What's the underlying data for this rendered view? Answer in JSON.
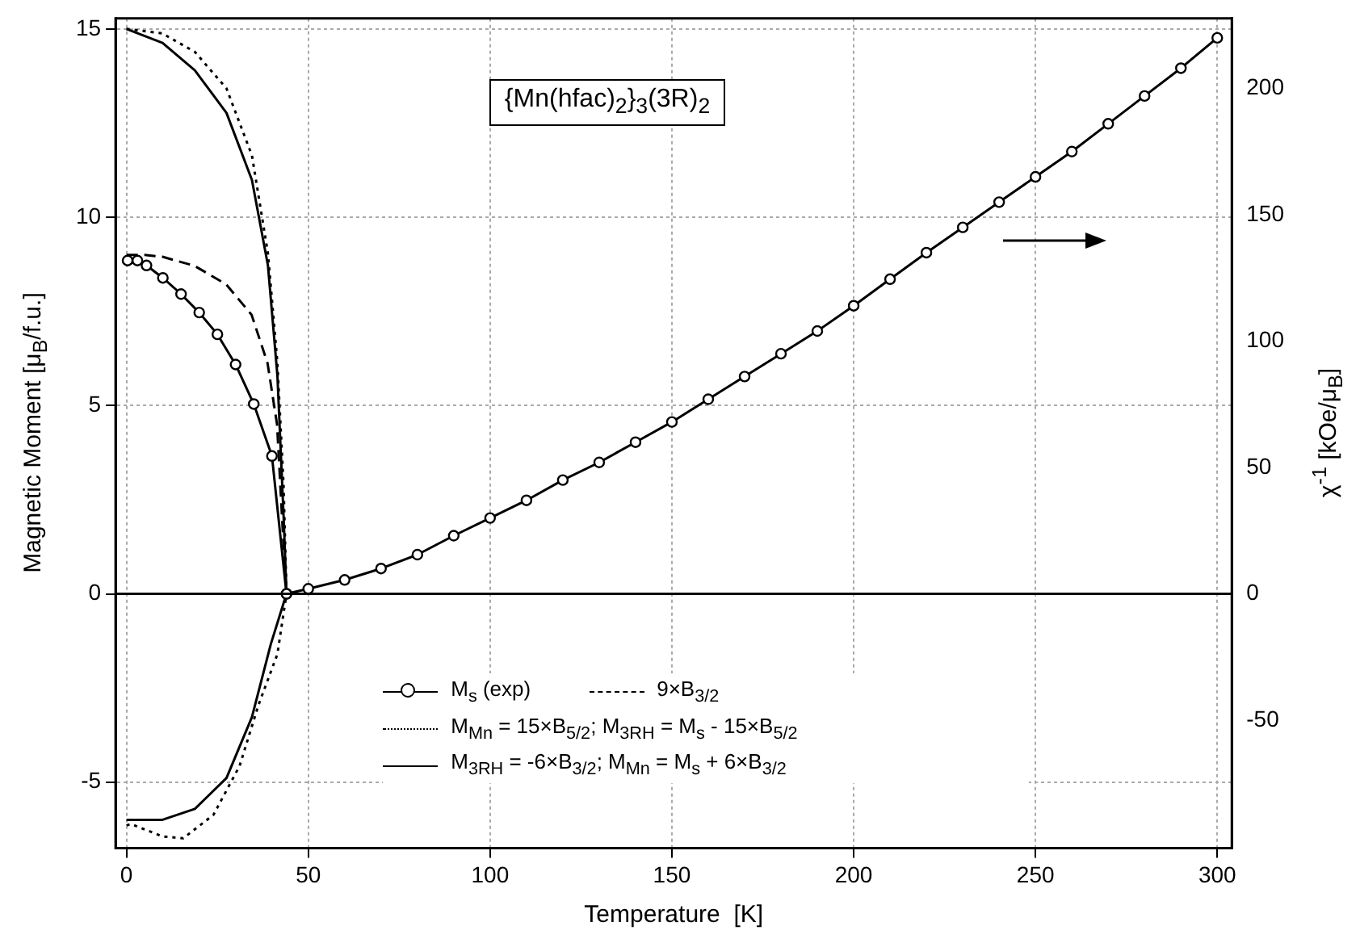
{
  "chart_data": {
    "type": "line",
    "title": "{Mn(hfac)$_{2}$}$_{3}$(3R)$_{2}$",
    "xlabel": "Temperature  [K]",
    "ylabel": "Magnetic Moment [μ$_{B}$/f.u.]",
    "y2label": "χ$^{-1}$  [kOe/μ$_{B}$]",
    "xlim": [
      -3,
      304
    ],
    "xticks": [
      0,
      50,
      100,
      150,
      200,
      250,
      300
    ],
    "ylim": [
      -6.75,
      15.28
    ],
    "yticks": [
      -5,
      0,
      5,
      10,
      15
    ],
    "y2lim": [
      -100.6,
      227.7
    ],
    "y2ticks": [
      -50,
      0,
      50,
      100,
      150,
      200
    ],
    "grid": true,
    "legend": "bottom",
    "ref_lines": [
      {
        "axis": "y",
        "value": 0
      }
    ],
    "series": [
      {
        "name": "M$_{s}$ (exp)",
        "type": "line",
        "marker": "circle",
        "line_style": "solid",
        "color": "#000000",
        "x": [
          0.3,
          3,
          5.5,
          10,
          15,
          20,
          25,
          30,
          35,
          40,
          44
        ],
        "values": [
          8.85,
          8.85,
          8.72,
          8.39,
          7.96,
          7.47,
          6.89,
          6.09,
          5.04,
          3.66,
          0
        ]
      },
      {
        "name": "9×B$_{3/2}$",
        "type": "line",
        "line_style": "dashed",
        "color": "#000000",
        "x": [
          0,
          5,
          9.9,
          18.7,
          27.4,
          34.4,
          38.8,
          41.4,
          43.2,
          44
        ],
        "values": [
          9,
          9,
          8.95,
          8.71,
          8.22,
          7.41,
          6.12,
          4.5,
          1.27,
          0
        ]
      },
      {
        "name": "M$_{Mn}$ = 15×B$_{5/2}$;  M$_{3R}$$_{H}$ = M$_{s}$ - 15×B$_{5/2}$",
        "type": "line",
        "line_style": "dotted",
        "color": "#000000",
        "x": [
          0,
          9.9,
          18.8,
          27.5,
          34.5,
          38.9,
          41.5,
          43.2,
          44
        ],
        "values": [
          15,
          14.88,
          14.39,
          13.42,
          11.64,
          9.04,
          6.13,
          2.88,
          0
        ]
      },
      {
        "name": "M$_{3R}$$_{H}$ =  -6×B$_{3/2}$;  M$_{Mn}$ = M$_{s}$ + 6×B$_{3/2}$",
        "type": "line",
        "line_style": "solid",
        "color": "#000000",
        "x": [
          0,
          9.9,
          18.8,
          27.5,
          34.5,
          38.9,
          41.5,
          43.2,
          44
        ],
        "values": [
          15,
          14.63,
          13.9,
          12.77,
          10.99,
          8.72,
          5.8,
          2.07,
          0
        ]
      },
      {
        "type": "line",
        "line_style": "dotted",
        "color": "#000000",
        "x": [
          0,
          1.2,
          9.9,
          15.6,
          23.9,
          31.1,
          36.3,
          41.5,
          44
        ],
        "values": [
          -6.15,
          -6.11,
          -6.44,
          -6.49,
          -5.87,
          -4.57,
          -2.95,
          -1.6,
          0
        ]
      },
      {
        "type": "line",
        "line_style": "solid",
        "color": "#000000",
        "x": [
          0,
          9.9,
          18.8,
          27.5,
          34.5,
          39.7,
          44
        ],
        "values": [
          -6,
          -6,
          -5.71,
          -4.89,
          -3.27,
          -1.33,
          0
        ]
      },
      {
        "type": "line",
        "marker": "circle",
        "line_style": "solid",
        "axis": "y2",
        "color": "#000000",
        "x": [
          44,
          50,
          60,
          70,
          80,
          90,
          100,
          110,
          120,
          130,
          140,
          150,
          160,
          170,
          180,
          190,
          200,
          210,
          220,
          230,
          240,
          250,
          260,
          270,
          280,
          290,
          300
        ],
        "values": [
          0,
          2,
          5.5,
          10,
          15.5,
          23,
          30,
          37,
          45,
          52,
          60,
          68,
          77,
          86,
          95,
          104,
          114,
          124.5,
          135,
          145,
          155,
          165,
          175,
          186,
          197,
          208,
          220
        ]
      }
    ]
  }
}
